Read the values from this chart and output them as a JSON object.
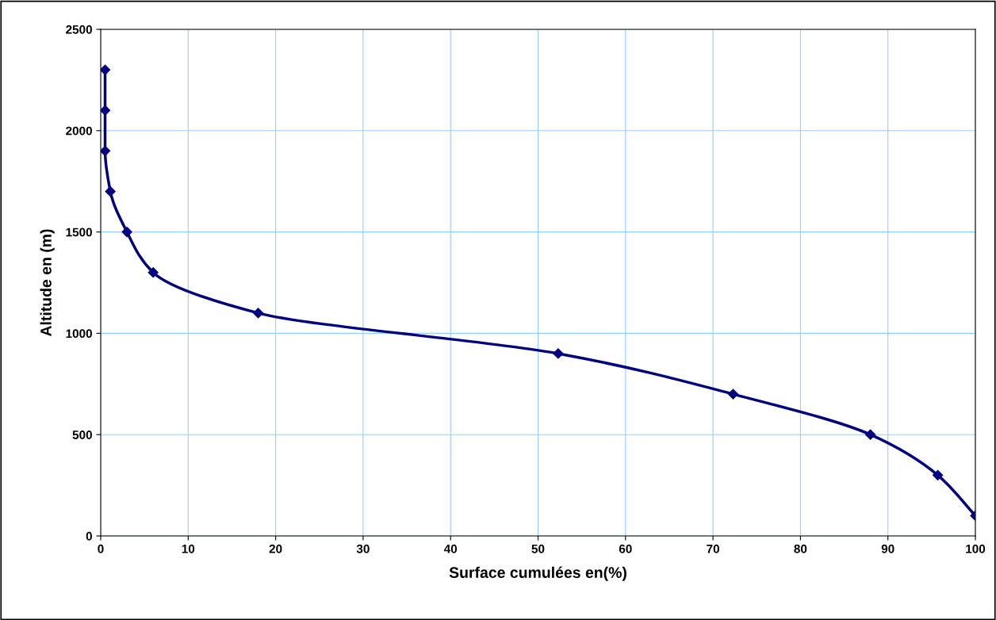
{
  "chart_data": {
    "type": "line",
    "xlabel": "Surface cumulées en(%)",
    "ylabel": "Altitude en (m)",
    "x": [
      0.5,
      0.5,
      0.5,
      1.1,
      3.0,
      6.0,
      18.0,
      52.3,
      72.3,
      88.0,
      95.7,
      100
    ],
    "series": [
      {
        "color": "#000080",
        "values": [
          2300,
          2100,
          1900,
          1700,
          1500,
          1300,
          1100,
          900,
          700,
          500,
          300,
          100
        ]
      }
    ],
    "xlim": [
      0,
      100
    ],
    "xticks": [
      0,
      10,
      20,
      30,
      40,
      50,
      60,
      70,
      80,
      90,
      100
    ],
    "ylim": [
      0,
      2500
    ],
    "yticks": [
      0,
      500,
      1000,
      1500,
      2000,
      2500
    ],
    "grid": true,
    "marker": "diamond",
    "line_style": "solid"
  }
}
